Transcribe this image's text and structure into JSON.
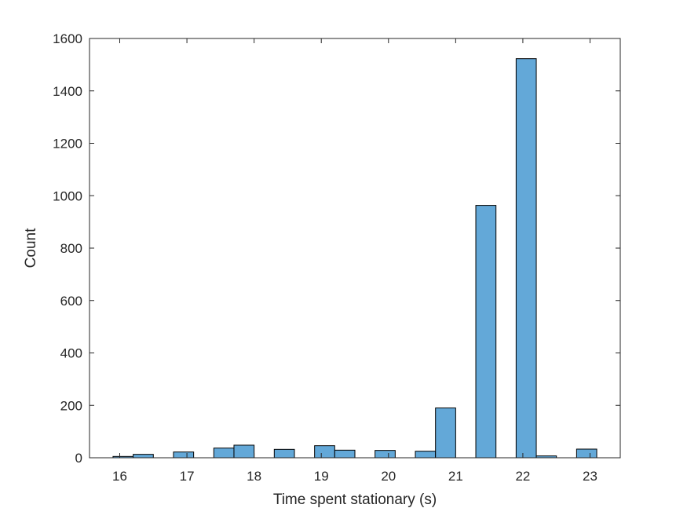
{
  "chart_data": {
    "type": "bar",
    "title": "",
    "xlabel": "Time spent stationary (s)",
    "ylabel": "Count",
    "xlim": [
      15.55,
      23.45
    ],
    "ylim": [
      0,
      1600
    ],
    "xticks": [
      16,
      17,
      18,
      19,
      20,
      21,
      22,
      23
    ],
    "yticks": [
      0,
      200,
      400,
      600,
      800,
      1000,
      1200,
      1400,
      1600
    ],
    "grid": false,
    "bar_color": "#63a8d8",
    "edge_color": "#000000",
    "bin_width": 0.3,
    "bins": [
      {
        "x0": 15.9,
        "x1": 16.2,
        "count": 5
      },
      {
        "x0": 16.2,
        "x1": 16.5,
        "count": 13
      },
      {
        "x0": 16.8,
        "x1": 17.1,
        "count": 22
      },
      {
        "x0": 17.4,
        "x1": 17.7,
        "count": 37
      },
      {
        "x0": 17.7,
        "x1": 18.0,
        "count": 48
      },
      {
        "x0": 18.3,
        "x1": 18.6,
        "count": 32
      },
      {
        "x0": 18.9,
        "x1": 19.2,
        "count": 46
      },
      {
        "x0": 19.2,
        "x1": 19.5,
        "count": 29
      },
      {
        "x0": 19.8,
        "x1": 20.1,
        "count": 28
      },
      {
        "x0": 20.4,
        "x1": 20.7,
        "count": 25
      },
      {
        "x0": 20.7,
        "x1": 21.0,
        "count": 190
      },
      {
        "x0": 21.3,
        "x1": 21.6,
        "count": 963
      },
      {
        "x0": 21.9,
        "x1": 22.2,
        "count": 1523
      },
      {
        "x0": 22.2,
        "x1": 22.5,
        "count": 7
      },
      {
        "x0": 22.8,
        "x1": 23.1,
        "count": 33
      }
    ]
  }
}
